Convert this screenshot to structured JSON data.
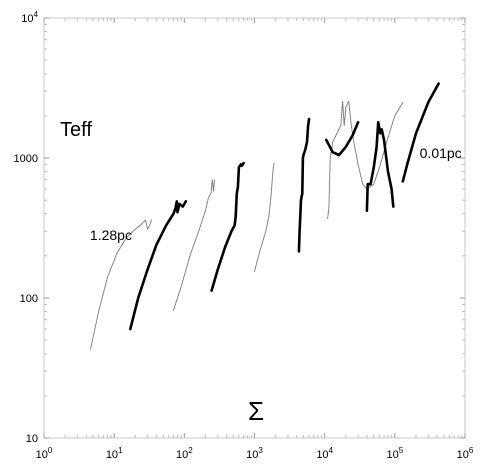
{
  "chart_data": {
    "type": "line",
    "title": "",
    "xlabel": "Σ",
    "ylabel": "Teff",
    "x_scale": "log",
    "y_scale": "log",
    "xlim": [
      1,
      1000000
    ],
    "ylim": [
      10,
      10000
    ],
    "grid": false,
    "x_ticks": [
      {
        "value": 1,
        "base": "10",
        "exp": "0"
      },
      {
        "value": 10,
        "base": "10",
        "exp": "1"
      },
      {
        "value": 100,
        "base": "10",
        "exp": "2"
      },
      {
        "value": 1000,
        "base": "10",
        "exp": "3"
      },
      {
        "value": 10000,
        "base": "10",
        "exp": "4"
      },
      {
        "value": 100000,
        "base": "10",
        "exp": "5"
      },
      {
        "value": 1000000,
        "base": "10",
        "exp": "6"
      }
    ],
    "y_ticks": [
      {
        "value": 10,
        "label": "10"
      },
      {
        "value": 100,
        "label": "100"
      },
      {
        "value": 1000,
        "label": "1000"
      },
      {
        "value": 10000,
        "base": "10",
        "exp": "4"
      }
    ],
    "annotations": [
      {
        "text": "1.28pc",
        "x": 9,
        "y": 260
      },
      {
        "text": "0.01pc",
        "x": 450000,
        "y": 1000
      }
    ],
    "series": [
      {
        "style": "thin",
        "points": [
          [
            4.6,
            43
          ],
          [
            6,
            80
          ],
          [
            8,
            140
          ],
          [
            11,
            210
          ],
          [
            15,
            270
          ],
          [
            20,
            310
          ],
          [
            25,
            340
          ],
          [
            28,
            360
          ],
          [
            30,
            310
          ],
          [
            32,
            330
          ],
          [
            34,
            360
          ]
        ]
      },
      {
        "style": "thick",
        "points": [
          [
            17,
            60
          ],
          [
            22,
            100
          ],
          [
            30,
            160
          ],
          [
            40,
            240
          ],
          [
            55,
            330
          ],
          [
            70,
            400
          ],
          [
            75,
            440
          ],
          [
            78,
            490
          ],
          [
            80,
            410
          ],
          [
            85,
            470
          ],
          [
            95,
            450
          ],
          [
            105,
            490
          ]
        ]
      },
      {
        "style": "thin",
        "points": [
          [
            70,
            82
          ],
          [
            90,
            120
          ],
          [
            120,
            200
          ],
          [
            160,
            300
          ],
          [
            200,
            420
          ],
          [
            220,
            520
          ],
          [
            240,
            560
          ],
          [
            250,
            700
          ],
          [
            260,
            580
          ],
          [
            270,
            700
          ]
        ]
      },
      {
        "style": "thick",
        "points": [
          [
            245,
            113
          ],
          [
            300,
            160
          ],
          [
            380,
            230
          ],
          [
            470,
            300
          ],
          [
            520,
            330
          ],
          [
            540,
            380
          ],
          [
            560,
            560
          ],
          [
            580,
            620
          ],
          [
            600,
            860
          ],
          [
            640,
            900
          ],
          [
            660,
            880
          ],
          [
            700,
            920
          ]
        ]
      },
      {
        "style": "thin",
        "points": [
          [
            1000,
            155
          ],
          [
            1200,
            220
          ],
          [
            1450,
            300
          ],
          [
            1600,
            380
          ],
          [
            1700,
            500
          ],
          [
            1800,
            720
          ],
          [
            1850,
            840
          ],
          [
            1900,
            920
          ]
        ]
      },
      {
        "style": "thick",
        "points": [
          [
            4300,
            215
          ],
          [
            4400,
            300
          ],
          [
            4600,
            500
          ],
          [
            4800,
            560
          ],
          [
            4900,
            1000
          ],
          [
            5000,
            1050
          ],
          [
            5300,
            1150
          ],
          [
            5600,
            1300
          ],
          [
            5800,
            1700
          ],
          [
            6000,
            1900
          ]
        ]
      },
      {
        "style": "thin",
        "points": [
          [
            11000,
            370
          ],
          [
            11500,
            440
          ],
          [
            12000,
            1000
          ],
          [
            13000,
            1300
          ],
          [
            15000,
            1500
          ],
          [
            17000,
            1700
          ],
          [
            18000,
            2550
          ],
          [
            19000,
            1700
          ],
          [
            20000,
            2300
          ],
          [
            22000,
            2550
          ],
          [
            24000,
            1700
          ],
          [
            26000,
            1300
          ],
          [
            30000,
            900
          ],
          [
            35000,
            650
          ],
          [
            40000,
            600
          ],
          [
            50000,
            650
          ],
          [
            60000,
            850
          ],
          [
            80000,
            1400
          ],
          [
            100000,
            2000
          ],
          [
            130000,
            2500
          ]
        ]
      },
      {
        "style": "thick",
        "points": [
          [
            10500,
            1350
          ],
          [
            13000,
            1100
          ],
          [
            16000,
            1050
          ],
          [
            20000,
            1200
          ],
          [
            25000,
            1450
          ],
          [
            30000,
            1800
          ]
        ]
      },
      {
        "style": "thick",
        "points": [
          [
            40000,
            420
          ],
          [
            41000,
            650
          ],
          [
            45000,
            650
          ],
          [
            50000,
            850
          ],
          [
            55000,
            1200
          ],
          [
            58000,
            1800
          ],
          [
            62000,
            1500
          ],
          [
            65000,
            1600
          ],
          [
            70000,
            1350
          ],
          [
            80000,
            800
          ],
          [
            90000,
            600
          ],
          [
            95000,
            450
          ]
        ]
      },
      {
        "style": "thick",
        "points": [
          [
            130000,
            680
          ],
          [
            150000,
            900
          ],
          [
            200000,
            1500
          ],
          [
            300000,
            2500
          ],
          [
            420000,
            3400
          ]
        ]
      }
    ]
  }
}
